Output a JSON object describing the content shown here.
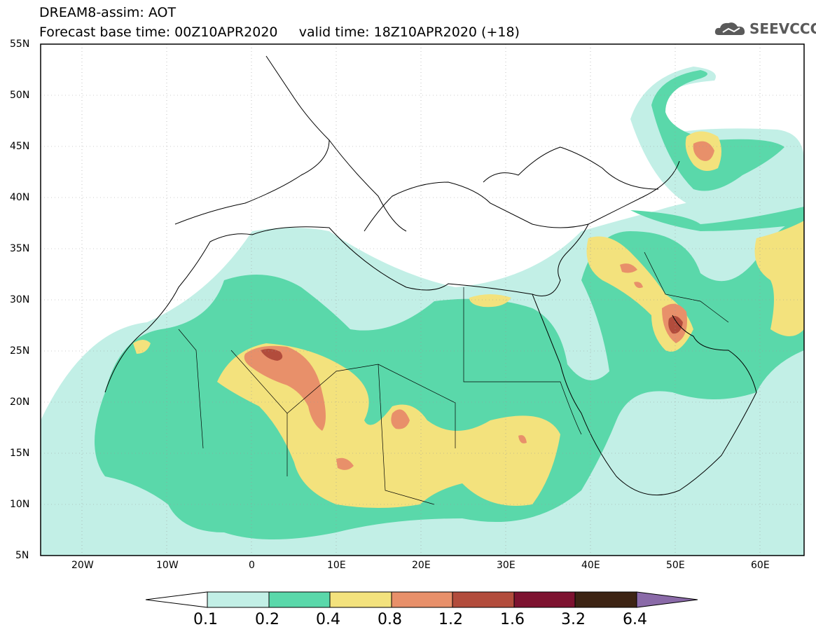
{
  "title": {
    "line1": "DREAM8-assim: AOT",
    "line2": "Forecast base time: 00Z10APR2020     valid time: 18Z10APR2020 (+18)"
  },
  "logo": {
    "text": "SEEVCCC",
    "icon": "cloud-icon"
  },
  "map": {
    "lon_range": [
      -25,
      65
    ],
    "lat_range": [
      5,
      55
    ],
    "lat_ticks": [
      "55N",
      "50N",
      "45N",
      "40N",
      "35N",
      "30N",
      "25N",
      "20N",
      "15N",
      "10N",
      "5N"
    ],
    "lon_ticks": [
      "20W",
      "10W",
      "0",
      "10E",
      "20E",
      "30E",
      "40E",
      "50E",
      "60E"
    ]
  },
  "colorbar": {
    "labels": [
      "0.1",
      "0.2",
      "0.4",
      "0.8",
      "1.2",
      "1.6",
      "3.2",
      "6.4"
    ],
    "colors": [
      "#ffffff",
      "#c2efe6",
      "#5ad8aa",
      "#f3e27d",
      "#e8906a",
      "#b24c3c",
      "#7d1230",
      "#3d2414",
      "#8a6aa8"
    ]
  }
}
